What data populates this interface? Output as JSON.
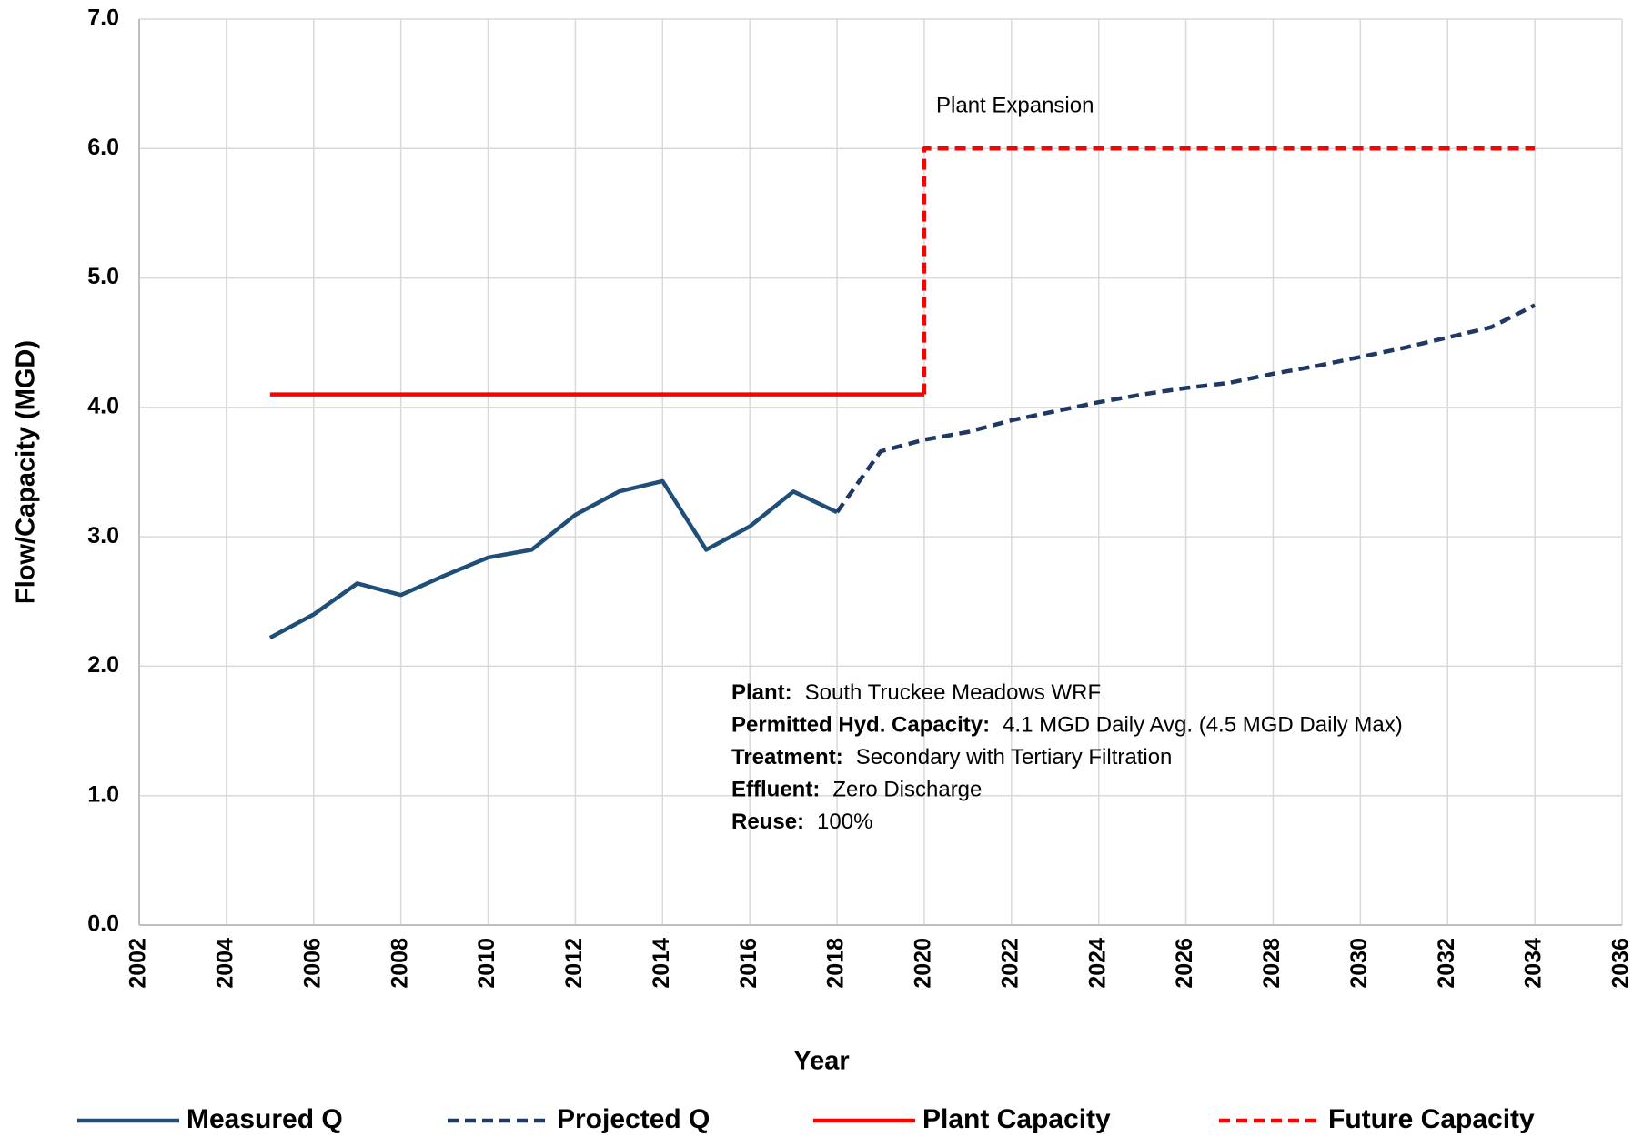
{
  "chart_data": {
    "type": "line",
    "xlabel": "Year",
    "ylabel": "Flow/Capacity  (MGD)",
    "xlim": [
      2002,
      2036
    ],
    "xticks": [
      2002,
      2004,
      2006,
      2008,
      2010,
      2012,
      2014,
      2016,
      2018,
      2020,
      2022,
      2024,
      2026,
      2028,
      2030,
      2032,
      2034,
      2036
    ],
    "ylim": [
      0,
      7
    ],
    "yticks": [
      {
        "value": 0,
        "label": "0.0"
      },
      {
        "value": 1,
        "label": "1.0"
      },
      {
        "value": 2,
        "label": "2.0"
      },
      {
        "value": 3,
        "label": "3.0"
      },
      {
        "value": 4,
        "label": "4.0"
      },
      {
        "value": 5,
        "label": "5.0"
      },
      {
        "value": 6,
        "label": "6.0"
      },
      {
        "value": 7,
        "label": "7.0"
      }
    ],
    "grid": true,
    "legend": "bottom",
    "series": [
      {
        "name": "Measured Q",
        "color": "#1f4e79",
        "dash": false,
        "x": [
          2005,
          2006,
          2007,
          2008,
          2009,
          2010,
          2011,
          2012,
          2013,
          2014,
          2015,
          2016,
          2017,
          2018
        ],
        "values": [
          2.22,
          2.4,
          2.64,
          2.55,
          2.7,
          2.84,
          2.9,
          3.17,
          3.35,
          3.43,
          2.9,
          3.08,
          3.35,
          3.19
        ]
      },
      {
        "name": "Projected Q",
        "color": "#1f3864",
        "dash": true,
        "x": [
          2018,
          2019,
          2020,
          2021,
          2022,
          2023,
          2024,
          2025,
          2026,
          2027,
          2028,
          2029,
          2030,
          2031,
          2032,
          2033,
          2034
        ],
        "values": [
          3.19,
          3.66,
          3.75,
          3.81,
          3.9,
          3.97,
          4.04,
          4.1,
          4.15,
          4.19,
          4.26,
          4.32,
          4.39,
          4.46,
          4.54,
          4.62,
          4.79
        ]
      },
      {
        "name": "Plant Capacity",
        "color": "#ff0000",
        "dash": false,
        "x": [
          2005,
          2020
        ],
        "values": [
          4.1,
          4.1
        ]
      },
      {
        "name": "Future Capacity",
        "color": "#ff0000",
        "dash": true,
        "x": [
          2020,
          2020,
          2034
        ],
        "values": [
          4.1,
          6.0,
          6.0
        ]
      }
    ],
    "annotations": [
      {
        "text": "Plant Expansion"
      }
    ],
    "info": [
      {
        "label": "Plant:",
        "text": "South Truckee Meadows WRF"
      },
      {
        "label": "Permitted Hyd. Capacity:",
        "text": "4.1 MGD Daily Avg. (4.5 MGD Daily Max)"
      },
      {
        "label": "Treatment:",
        "text": "Secondary with Tertiary Filtration"
      },
      {
        "label": "Effluent:",
        "text": "Zero Discharge"
      },
      {
        "label": "Reuse:",
        "text": "100%"
      }
    ]
  }
}
